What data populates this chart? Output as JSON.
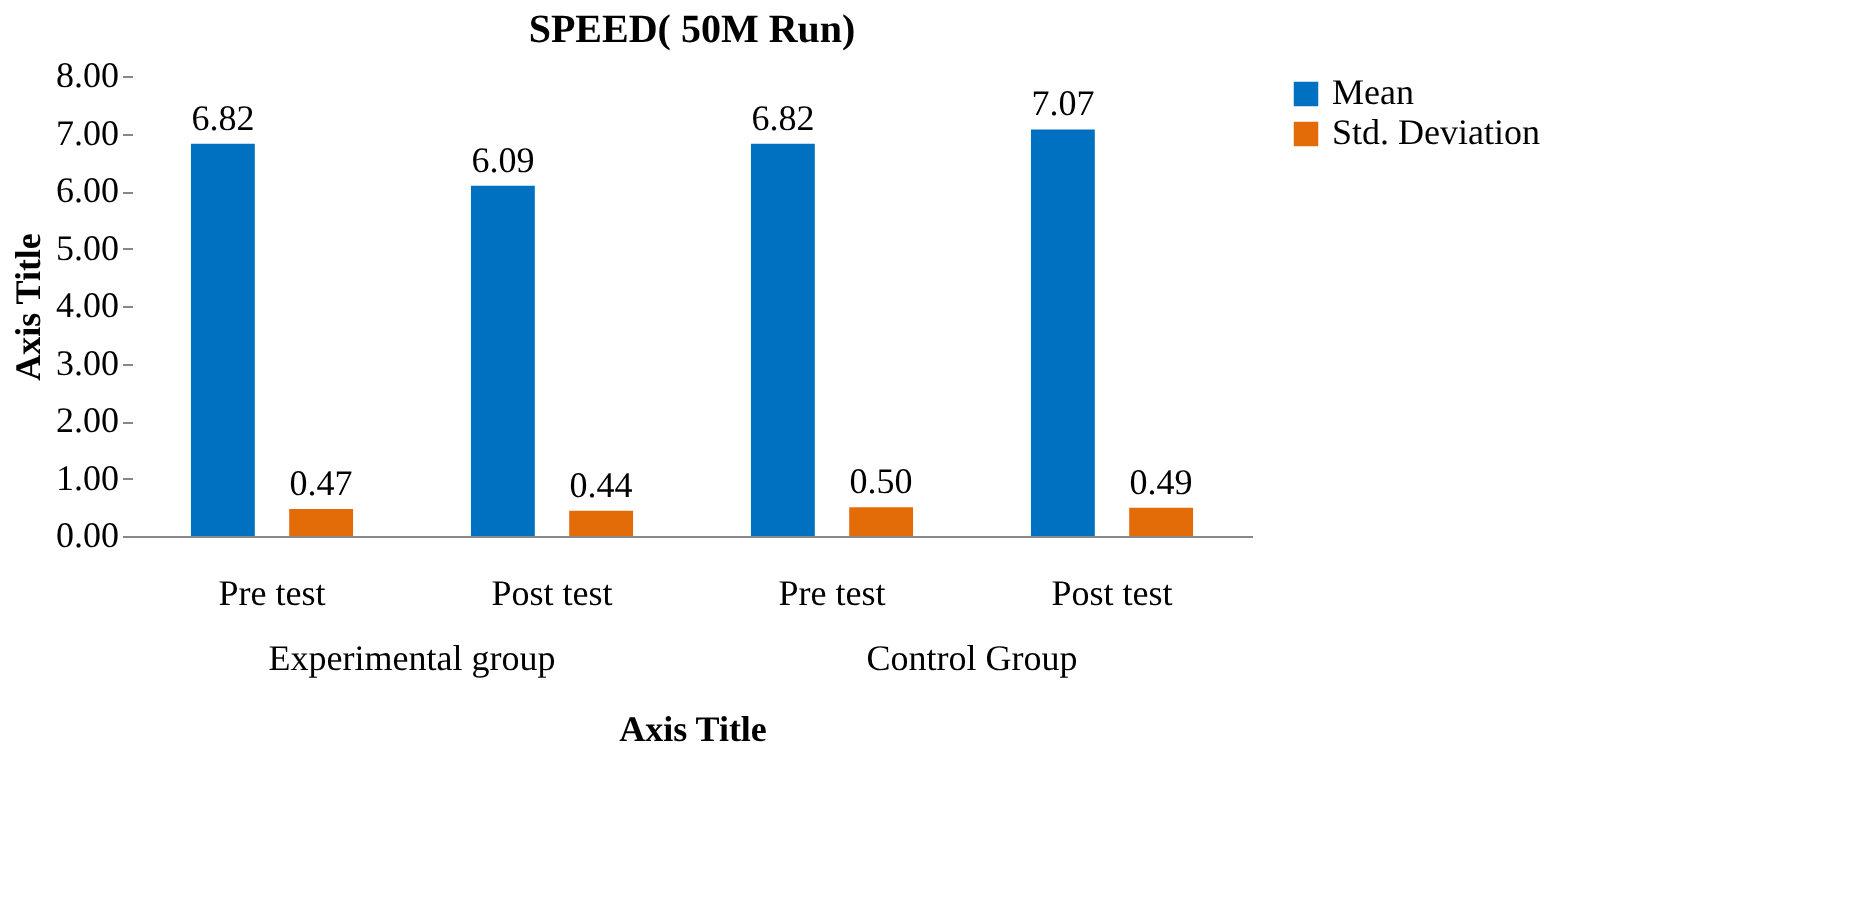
{
  "chart_data": {
    "type": "bar",
    "title": "SPEED( 50M Run)",
    "xlabel": "Axis Title",
    "ylabel": "Axis Title",
    "categories": [
      "Pre test",
      "Post test",
      "Pre test",
      "Post test"
    ],
    "series": [
      {
        "name": "Mean",
        "color": "#0070c0",
        "values": [
          6.82,
          6.09,
          6.82,
          7.07
        ],
        "value_labels": [
          "6.82",
          "6.09",
          "6.82",
          "7.07"
        ]
      },
      {
        "name": "Std. Deviation",
        "color": "#e36c09",
        "values": [
          0.47,
          0.44,
          0.5,
          0.49
        ],
        "value_labels": [
          "0.47",
          "0.44",
          "0.50",
          "0.49"
        ]
      }
    ],
    "annotations": [
      "Experimental group",
      "Control Group"
    ],
    "ylim": [
      0,
      8
    ],
    "yticks": [
      {
        "value": 0,
        "label": "0.00"
      },
      {
        "value": 1,
        "label": "1.00"
      },
      {
        "value": 2,
        "label": "2.00"
      },
      {
        "value": 3,
        "label": "3.00"
      },
      {
        "value": 4,
        "label": "4.00"
      },
      {
        "value": 5,
        "label": "5.00"
      },
      {
        "value": 6,
        "label": "6.00"
      },
      {
        "value": 7,
        "label": "7.00"
      },
      {
        "value": 8,
        "label": "8.00"
      }
    ],
    "grid": false,
    "legend": "right"
  }
}
